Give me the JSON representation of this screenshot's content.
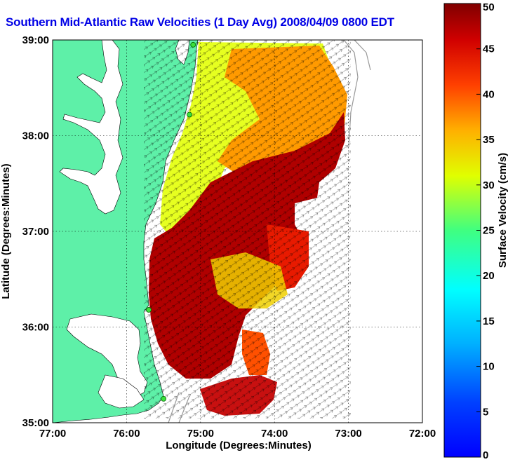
{
  "title": "Southern Mid-Atlantic Raw Velocities (1 Day Avg) 2008/04/09 0800 EDT",
  "map": {
    "xlabel": "Longitude (Degrees:Minutes)",
    "ylabel": "Latitude (Degrees:Minutes)",
    "x_ticks": [
      "77:00",
      "76:00",
      "75:00",
      "74:00",
      "73:00",
      "72:00"
    ],
    "y_ticks": [
      "39:00",
      "38:00",
      "37:00",
      "36:00",
      "35:00"
    ],
    "lon_range": [
      -77,
      -72
    ],
    "lat_range": [
      35,
      39
    ],
    "grid": true,
    "land_color": "#5ef0a8",
    "water_color": "#ffffff"
  },
  "colorbar": {
    "label": "Surface Velocity (cm/s)",
    "ticks": [
      "50",
      "45",
      "40",
      "35",
      "30",
      "25",
      "20",
      "15",
      "10",
      "5",
      "0"
    ],
    "range": [
      0,
      50
    ],
    "colormap": "jet",
    "placement": "right"
  },
  "radar_sites": [
    {
      "lon": -75.1,
      "lat": 38.95
    },
    {
      "lon": -75.15,
      "lat": 38.22
    },
    {
      "lon": -75.7,
      "lat": 36.18
    },
    {
      "lon": -75.5,
      "lat": 35.25
    }
  ]
}
